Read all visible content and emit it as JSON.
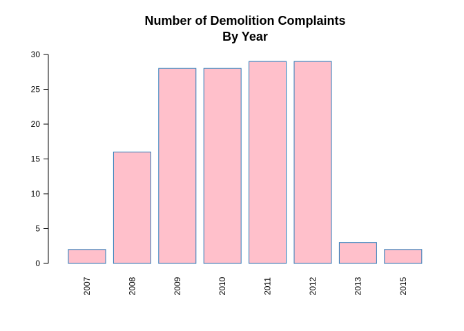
{
  "chart_data": {
    "type": "bar",
    "title": "Number of Demolition Complaints",
    "subtitle": "By Year",
    "xlabel": "",
    "ylabel": "",
    "categories": [
      "2007",
      "2008",
      "2009",
      "2010",
      "2011",
      "2012",
      "2013",
      "2015"
    ],
    "values": [
      2,
      16,
      28,
      28,
      29,
      29,
      3,
      2
    ],
    "ylim": [
      0,
      30
    ],
    "yticks": [
      "0",
      "5",
      "10",
      "15",
      "20",
      "25",
      "30"
    ],
    "grid": false,
    "legend": "none",
    "bar_fill": "#ffc0cb",
    "bar_stroke": "#2b7bb9"
  }
}
